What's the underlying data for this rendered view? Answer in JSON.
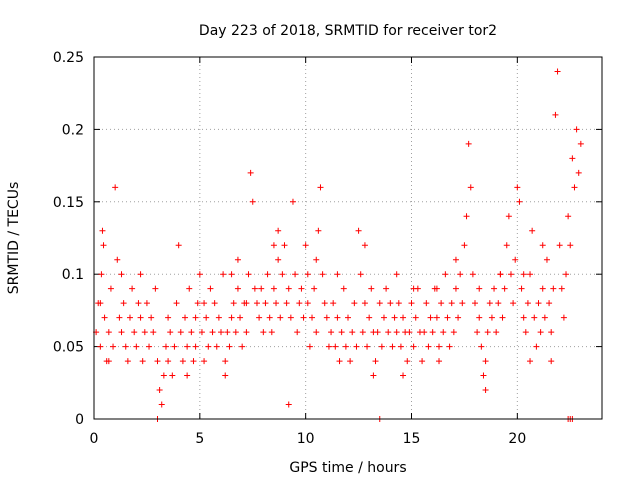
{
  "chart_data": {
    "type": "scatter",
    "title": "Day 223 of 2018, SRMTID for receiver tor2",
    "xlabel": "GPS time / hours",
    "ylabel": "SRMTID / TECUs",
    "xlim": [
      0,
      24
    ],
    "ylim": [
      0,
      0.25
    ],
    "xticks": [
      0,
      5,
      10,
      15,
      20
    ],
    "xtick_labels": [
      "0",
      "5",
      "10",
      "15",
      "20"
    ],
    "yticks": [
      0,
      0.05,
      0.1,
      0.15,
      0.2,
      0.25
    ],
    "ytick_labels": [
      "0",
      "0.05",
      "0.1",
      "0.15",
      "0.2",
      "0.25"
    ],
    "grid": true,
    "marker": "+",
    "series": [
      {
        "name": "SRMTID",
        "color": "#ff0000",
        "points": [
          [
            0.1,
            0.06
          ],
          [
            0.2,
            0.08
          ],
          [
            0.3,
            0.05
          ],
          [
            0.35,
            0.1
          ],
          [
            0.4,
            0.13
          ],
          [
            0.45,
            0.12
          ],
          [
            0.5,
            0.07
          ],
          [
            0.6,
            0.04
          ],
          [
            0.7,
            0.06
          ],
          [
            0.8,
            0.09
          ],
          [
            0.9,
            0.05
          ],
          [
            1.0,
            0.16
          ],
          [
            1.1,
            0.11
          ],
          [
            1.2,
            0.07
          ],
          [
            1.3,
            0.06
          ],
          [
            1.4,
            0.08
          ],
          [
            1.5,
            0.05
          ],
          [
            1.6,
            0.04
          ],
          [
            1.7,
            0.07
          ],
          [
            1.8,
            0.09
          ],
          [
            1.9,
            0.06
          ],
          [
            2.0,
            0.05
          ],
          [
            2.1,
            0.08
          ],
          [
            2.2,
            0.07
          ],
          [
            2.3,
            0.04
          ],
          [
            2.4,
            0.06
          ],
          [
            2.5,
            0.08
          ],
          [
            2.6,
            0.05
          ],
          [
            2.7,
            0.07
          ],
          [
            2.8,
            0.06
          ],
          [
            2.9,
            0.09
          ],
          [
            3.0,
            0.04
          ],
          [
            3.1,
            0.02
          ],
          [
            3.2,
            0.01
          ],
          [
            3.3,
            0.03
          ],
          [
            3.4,
            0.05
          ],
          [
            3.5,
            0.04
          ],
          [
            3.6,
            0.06
          ],
          [
            3.7,
            0.03
          ],
          [
            3.8,
            0.05
          ],
          [
            3.9,
            0.08
          ],
          [
            4.0,
            0.12
          ],
          [
            4.1,
            0.06
          ],
          [
            4.2,
            0.04
          ],
          [
            4.3,
            0.07
          ],
          [
            4.4,
            0.05
          ],
          [
            4.5,
            0.09
          ],
          [
            4.6,
            0.06
          ],
          [
            4.7,
            0.04
          ],
          [
            4.8,
            0.05
          ],
          [
            4.9,
            0.08
          ],
          [
            5.0,
            0.1
          ],
          [
            5.1,
            0.06
          ],
          [
            5.2,
            0.04
          ],
          [
            5.3,
            0.07
          ],
          [
            5.4,
            0.05
          ],
          [
            5.5,
            0.09
          ],
          [
            5.6,
            0.06
          ],
          [
            5.7,
            0.08
          ],
          [
            5.8,
            0.05
          ],
          [
            5.9,
            0.07
          ],
          [
            6.0,
            0.06
          ],
          [
            6.1,
            0.1
          ],
          [
            6.2,
            0.04
          ],
          [
            6.3,
            0.06
          ],
          [
            6.4,
            0.05
          ],
          [
            6.5,
            0.07
          ],
          [
            6.6,
            0.08
          ],
          [
            6.7,
            0.06
          ],
          [
            6.8,
            0.09
          ],
          [
            6.9,
            0.07
          ],
          [
            7.0,
            0.05
          ],
          [
            7.1,
            0.08
          ],
          [
            7.2,
            0.06
          ],
          [
            7.3,
            0.1
          ],
          [
            7.4,
            0.17
          ],
          [
            7.5,
            0.15
          ],
          [
            7.6,
            0.09
          ],
          [
            7.7,
            0.08
          ],
          [
            7.8,
            0.07
          ],
          [
            7.9,
            0.09
          ],
          [
            8.0,
            0.06
          ],
          [
            8.1,
            0.08
          ],
          [
            8.2,
            0.1
          ],
          [
            8.3,
            0.07
          ],
          [
            8.4,
            0.06
          ],
          [
            8.5,
            0.09
          ],
          [
            8.6,
            0.08
          ],
          [
            8.7,
            0.11
          ],
          [
            8.8,
            0.07
          ],
          [
            8.9,
            0.1
          ],
          [
            9.0,
            0.12
          ],
          [
            9.1,
            0.08
          ],
          [
            9.2,
            0.09
          ],
          [
            9.3,
            0.07
          ],
          [
            9.4,
            0.15
          ],
          [
            9.5,
            0.1
          ],
          [
            9.6,
            0.06
          ],
          [
            9.7,
            0.08
          ],
          [
            9.8,
            0.09
          ],
          [
            9.9,
            0.07
          ],
          [
            10.0,
            0.12
          ],
          [
            10.1,
            0.08
          ],
          [
            10.2,
            0.05
          ],
          [
            10.3,
            0.07
          ],
          [
            10.4,
            0.09
          ],
          [
            10.5,
            0.06
          ],
          [
            10.6,
            0.13
          ],
          [
            10.7,
            0.16
          ],
          [
            10.8,
            0.1
          ],
          [
            10.9,
            0.08
          ],
          [
            11.0,
            0.07
          ],
          [
            11.1,
            0.05
          ],
          [
            11.2,
            0.06
          ],
          [
            11.3,
            0.08
          ],
          [
            11.4,
            0.05
          ],
          [
            11.5,
            0.07
          ],
          [
            11.6,
            0.04
          ],
          [
            11.7,
            0.06
          ],
          [
            11.8,
            0.09
          ],
          [
            11.9,
            0.05
          ],
          [
            12.0,
            0.07
          ],
          [
            12.1,
            0.04
          ],
          [
            12.2,
            0.06
          ],
          [
            12.3,
            0.08
          ],
          [
            12.4,
            0.05
          ],
          [
            12.5,
            0.13
          ],
          [
            12.6,
            0.1
          ],
          [
            12.7,
            0.06
          ],
          [
            12.8,
            0.08
          ],
          [
            12.9,
            0.05
          ],
          [
            13.0,
            0.07
          ],
          [
            13.1,
            0.09
          ],
          [
            13.2,
            0.06
          ],
          [
            13.3,
            0.04
          ],
          [
            13.4,
            0.06
          ],
          [
            13.5,
            0.08
          ],
          [
            13.6,
            0.05
          ],
          [
            13.7,
            0.07
          ],
          [
            13.8,
            0.09
          ],
          [
            13.9,
            0.06
          ],
          [
            14.0,
            0.08
          ],
          [
            14.1,
            0.05
          ],
          [
            14.2,
            0.07
          ],
          [
            14.3,
            0.06
          ],
          [
            14.4,
            0.08
          ],
          [
            14.5,
            0.05
          ],
          [
            14.6,
            0.07
          ],
          [
            14.7,
            0.06
          ],
          [
            14.8,
            0.04
          ],
          [
            14.9,
            0.06
          ],
          [
            15.0,
            0.08
          ],
          [
            15.1,
            0.05
          ],
          [
            15.2,
            0.07
          ],
          [
            15.3,
            0.09
          ],
          [
            15.4,
            0.06
          ],
          [
            15.5,
            0.04
          ],
          [
            15.6,
            0.06
          ],
          [
            15.7,
            0.08
          ],
          [
            15.8,
            0.05
          ],
          [
            15.9,
            0.07
          ],
          [
            16.0,
            0.06
          ],
          [
            16.1,
            0.09
          ],
          [
            16.2,
            0.07
          ],
          [
            16.3,
            0.05
          ],
          [
            16.4,
            0.08
          ],
          [
            16.5,
            0.06
          ],
          [
            16.6,
            0.1
          ],
          [
            16.7,
            0.07
          ],
          [
            16.8,
            0.05
          ],
          [
            16.9,
            0.08
          ],
          [
            17.0,
            0.06
          ],
          [
            17.1,
            0.09
          ],
          [
            17.2,
            0.07
          ],
          [
            17.3,
            0.1
          ],
          [
            17.4,
            0.08
          ],
          [
            17.5,
            0.12
          ],
          [
            17.6,
            0.14
          ],
          [
            17.7,
            0.19
          ],
          [
            17.8,
            0.16
          ],
          [
            17.9,
            0.1
          ],
          [
            18.0,
            0.08
          ],
          [
            18.1,
            0.06
          ],
          [
            18.2,
            0.07
          ],
          [
            18.3,
            0.05
          ],
          [
            18.4,
            0.03
          ],
          [
            18.5,
            0.04
          ],
          [
            18.6,
            0.06
          ],
          [
            18.7,
            0.08
          ],
          [
            18.8,
            0.07
          ],
          [
            18.9,
            0.09
          ],
          [
            19.0,
            0.06
          ],
          [
            19.1,
            0.08
          ],
          [
            19.2,
            0.1
          ],
          [
            19.3,
            0.07
          ],
          [
            19.4,
            0.09
          ],
          [
            19.5,
            0.12
          ],
          [
            19.6,
            0.14
          ],
          [
            19.7,
            0.1
          ],
          [
            19.8,
            0.08
          ],
          [
            19.9,
            0.11
          ],
          [
            20.0,
            0.16
          ],
          [
            20.1,
            0.15
          ],
          [
            20.2,
            0.09
          ],
          [
            20.3,
            0.07
          ],
          [
            20.4,
            0.06
          ],
          [
            20.5,
            0.08
          ],
          [
            20.6,
            0.1
          ],
          [
            20.7,
            0.13
          ],
          [
            20.8,
            0.07
          ],
          [
            20.9,
            0.05
          ],
          [
            21.0,
            0.08
          ],
          [
            21.1,
            0.06
          ],
          [
            21.2,
            0.09
          ],
          [
            21.3,
            0.07
          ],
          [
            21.4,
            0.11
          ],
          [
            21.5,
            0.08
          ],
          [
            21.6,
            0.06
          ],
          [
            21.7,
            0.09
          ],
          [
            21.8,
            0.21
          ],
          [
            21.9,
            0.24
          ],
          [
            22.0,
            0.12
          ],
          [
            22.1,
            0.09
          ],
          [
            22.2,
            0.07
          ],
          [
            22.3,
            0.1
          ],
          [
            22.4,
            0.14
          ],
          [
            22.5,
            0.12
          ],
          [
            22.6,
            0.18
          ],
          [
            22.7,
            0.16
          ],
          [
            22.8,
            0.2
          ],
          [
            22.9,
            0.17
          ],
          [
            23.0,
            0.19
          ],
          [
            3.0,
            0.0
          ],
          [
            13.5,
            0.0
          ],
          [
            22.4,
            0.0
          ],
          [
            22.6,
            0.0
          ],
          [
            22.5,
            0.0
          ],
          [
            0.3,
            0.08
          ],
          [
            1.3,
            0.1
          ],
          [
            2.2,
            0.1
          ],
          [
            5.2,
            0.08
          ],
          [
            6.5,
            0.1
          ],
          [
            7.2,
            0.08
          ],
          [
            8.5,
            0.12
          ],
          [
            9.2,
            0.01
          ],
          [
            10.5,
            0.11
          ],
          [
            11.5,
            0.1
          ],
          [
            12.8,
            0.12
          ],
          [
            14.3,
            0.1
          ],
          [
            15.1,
            0.09
          ],
          [
            16.2,
            0.09
          ],
          [
            17.1,
            0.11
          ],
          [
            18.2,
            0.09
          ],
          [
            19.2,
            0.1
          ],
          [
            20.3,
            0.1
          ],
          [
            21.2,
            0.12
          ],
          [
            0.7,
            0.04
          ],
          [
            4.4,
            0.03
          ],
          [
            6.2,
            0.03
          ],
          [
            13.2,
            0.03
          ],
          [
            14.6,
            0.03
          ],
          [
            16.3,
            0.04
          ],
          [
            18.5,
            0.02
          ],
          [
            20.6,
            0.04
          ],
          [
            21.6,
            0.04
          ],
          [
            3.5,
            0.07
          ],
          [
            4.8,
            0.07
          ],
          [
            6.8,
            0.11
          ],
          [
            8.7,
            0.13
          ],
          [
            10.1,
            0.1
          ]
        ]
      }
    ]
  }
}
